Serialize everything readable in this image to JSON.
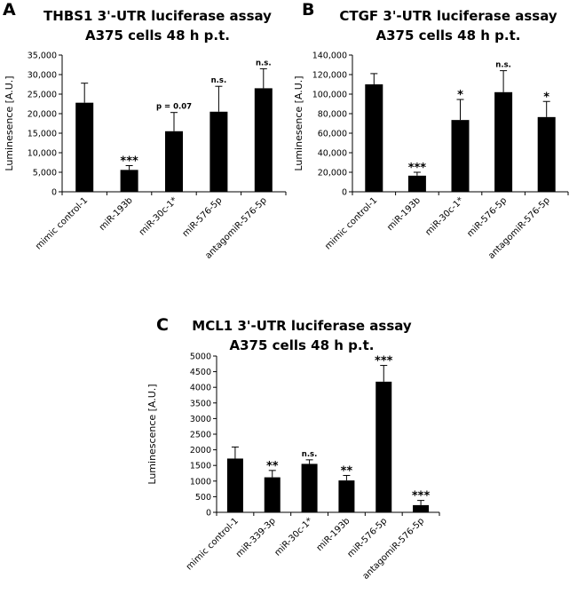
{
  "chart_data": [
    {
      "type": "bar",
      "panel_label": "A",
      "title": "THBS1 3'-UTR luciferase assay",
      "subtitle": "A375 cells 48 h p.t.",
      "ylabel": "Luminesence [A.U.]",
      "xlabel": "",
      "ylim": [
        0,
        35000
      ],
      "yticks": [
        0,
        5000,
        10000,
        15000,
        20000,
        25000,
        30000,
        35000
      ],
      "ytick_labels": [
        "0",
        "5,000",
        "10,000",
        "15,000",
        "20,000",
        "25,000",
        "30,000",
        "35,000"
      ],
      "categories": [
        "mimic control-1",
        "miR-193b",
        "miR-30c-1*",
        "miR-576-5p",
        "antagomiR-576-5p"
      ],
      "values": [
        22800,
        5600,
        15500,
        20500,
        26500
      ],
      "errors": [
        5000,
        1100,
        4800,
        6500,
        5000
      ],
      "annotations": [
        "",
        "***",
        "p = 0.07",
        "n.s.",
        "n.s."
      ],
      "bar_color": "#000000",
      "grid": false
    },
    {
      "type": "bar",
      "panel_label": "B",
      "title": "CTGF 3'-UTR luciferase assay",
      "subtitle": "A375 cells 48 h p.t.",
      "ylabel": "Luminesence [A.U.]",
      "xlabel": "",
      "ylim": [
        0,
        140000
      ],
      "yticks": [
        0,
        20000,
        40000,
        60000,
        80000,
        100000,
        120000,
        140000
      ],
      "ytick_labels": [
        "0",
        "20,000",
        "40,000",
        "60,000",
        "80,000",
        "100,000",
        "120,000",
        "140,000"
      ],
      "categories": [
        "mimic control-1",
        "miR-193b",
        "miR-30c-1*",
        "miR-576-5p",
        "antagomiR-576-5p"
      ],
      "values": [
        110000,
        16500,
        73500,
        102000,
        76500
      ],
      "errors": [
        11000,
        3500,
        21000,
        22000,
        16000
      ],
      "annotations": [
        "",
        "***",
        "*",
        "n.s.",
        "*"
      ],
      "bar_color": "#000000",
      "grid": false
    },
    {
      "type": "bar",
      "panel_label": "C",
      "title": "MCL1 3'-UTR luciferase assay",
      "subtitle": "A375 cells 48 h p.t.",
      "ylabel": "Luminescence [A.U.]",
      "xlabel": "",
      "ylim": [
        0,
        5000
      ],
      "yticks": [
        0,
        500,
        1000,
        1500,
        2000,
        2500,
        3000,
        3500,
        4000,
        4500,
        5000
      ],
      "ytick_labels": [
        "0",
        "500",
        "1000",
        "1500",
        "2000",
        "2500",
        "3000",
        "3500",
        "4000",
        "4500",
        "5000"
      ],
      "categories": [
        "mimic control-1",
        "miR-339-3p",
        "miR-30c-1*",
        "miR-193b",
        "miR-576-5p",
        "antagomiR-576-5p"
      ],
      "values": [
        1720,
        1120,
        1550,
        1020,
        4180,
        230
      ],
      "errors": [
        370,
        220,
        130,
        160,
        520,
        150
      ],
      "annotations": [
        "",
        "**",
        "n.s.",
        "**",
        "***",
        "***"
      ],
      "bar_color": "#000000",
      "grid": false
    }
  ]
}
